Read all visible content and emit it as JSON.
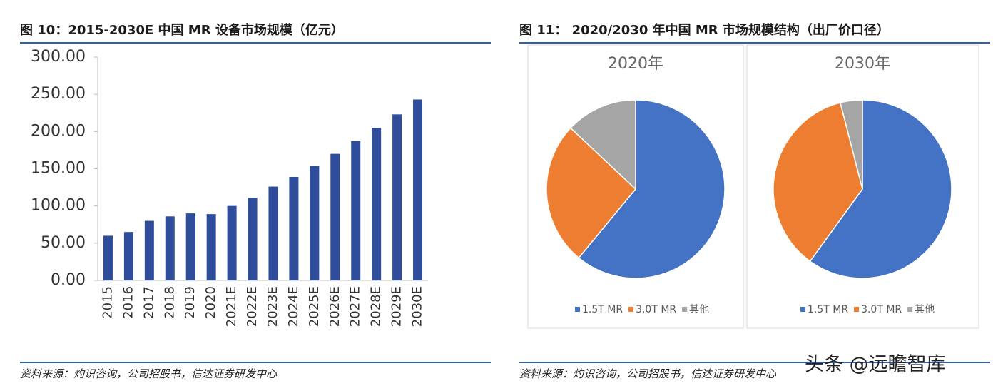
{
  "left_panel": {
    "title": "图 10：2015-2030E 中国 MR 设备市场规模（亿元）",
    "source": "资料来源：灼识咨询，公司招股书，信达证券研发中心"
  },
  "right_panel": {
    "title": "图 11： 2020/2030 年中国 MR 市场规模结构（出厂价口径）",
    "source": "资料来源：灼识咨询，公司招股书，信达证券研发中心"
  },
  "watermark": "头条 @远瞻智库",
  "chart_data": [
    {
      "type": "bar",
      "color": "#2f4d9b",
      "categories": [
        "2015",
        "2016",
        "2017",
        "2018",
        "2019",
        "2020",
        "2021E",
        "2022E",
        "2023E",
        "2024E",
        "2025E",
        "2026E",
        "2027E",
        "2028E",
        "2029E",
        "2030E"
      ],
      "values": [
        60,
        65,
        80,
        86,
        90,
        89,
        100,
        111,
        126,
        139,
        154,
        170,
        187,
        205,
        223,
        243
      ],
      "ylim": [
        0,
        300
      ],
      "yticks": [
        {
          "value": 0,
          "label": "0.00"
        },
        {
          "value": 50,
          "label": "50.00"
        },
        {
          "value": 100,
          "label": "100.00"
        },
        {
          "value": 150,
          "label": "150.00"
        },
        {
          "value": 200,
          "label": "200.00"
        },
        {
          "value": 250,
          "label": "250.00"
        },
        {
          "value": 300,
          "label": "300.00"
        }
      ]
    },
    {
      "type": "pie",
      "title": "2020年",
      "categories": [
        "1.5T MR",
        "3.0T MR",
        "其他"
      ],
      "values": [
        61,
        26,
        13
      ],
      "colors": [
        "#4472c4",
        "#ed7d31",
        "#a5a5a5"
      ]
    },
    {
      "type": "pie",
      "title": "2030年",
      "categories": [
        "1.5T MR",
        "3.0T MR",
        "其他"
      ],
      "values": [
        60,
        36,
        4
      ],
      "colors": [
        "#4472c4",
        "#ed7d31",
        "#a5a5a5"
      ]
    }
  ]
}
